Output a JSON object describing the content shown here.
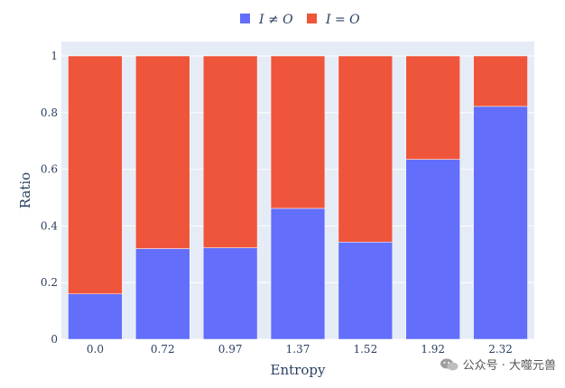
{
  "chart_data": {
    "type": "bar",
    "stacked": true,
    "categories": [
      "0.0",
      "0.72",
      "0.97",
      "1.37",
      "1.52",
      "1.92",
      "2.32"
    ],
    "series": [
      {
        "name": "I ≠ O",
        "color": "#636efa",
        "values": [
          0.16,
          0.32,
          0.323,
          0.462,
          0.343,
          0.635,
          0.822
        ]
      },
      {
        "name": "I = O",
        "color": "#ef553b",
        "values": [
          0.84,
          0.68,
          0.677,
          0.538,
          0.657,
          0.365,
          0.178
        ]
      }
    ],
    "xlabel": "Entropy",
    "ylabel": "Ratio",
    "ylim": [
      0,
      1
    ],
    "yticks": [
      "0",
      "0.2",
      "0.4",
      "0.6",
      "0.8",
      "1"
    ],
    "grid": true,
    "legend_position": "top-center",
    "plot_bg": "#e5ecf6"
  },
  "watermark": {
    "text": "公众号 · 大噬元兽",
    "icon": "wechat-icon"
  }
}
